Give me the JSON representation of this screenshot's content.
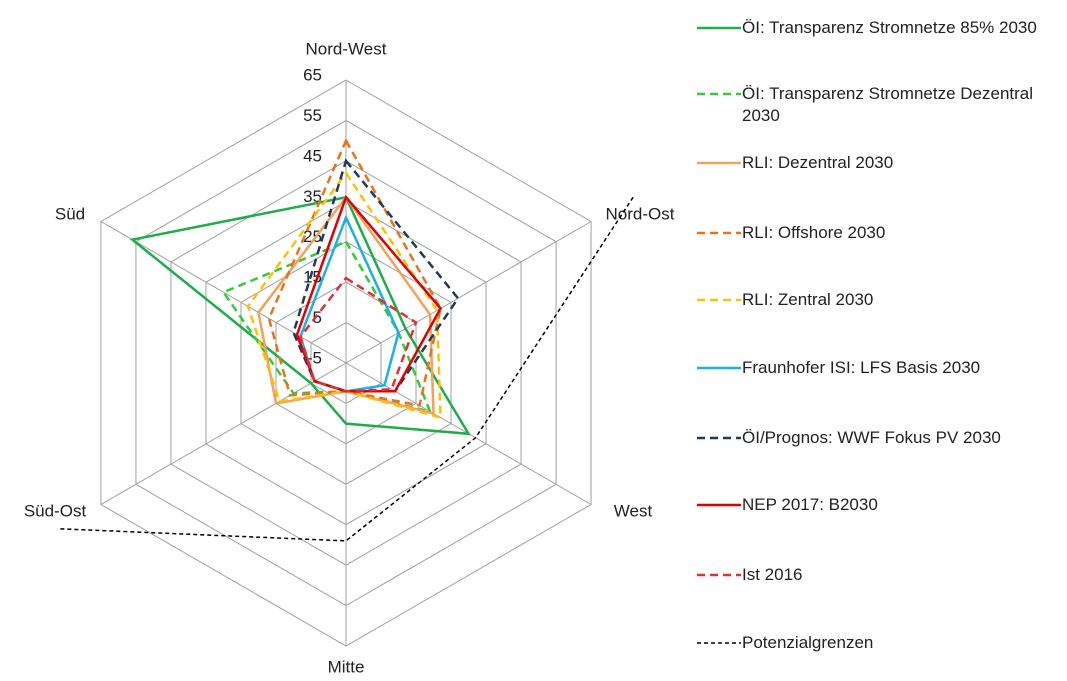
{
  "chart_data": {
    "type": "radar",
    "categories": [
      "Nord-West",
      "Nord-Ost",
      "West",
      "Mitte",
      "Süd-Ost",
      "Süd"
    ],
    "ylim": [
      -5,
      65
    ],
    "yticks": [
      -5,
      5,
      15,
      25,
      35,
      45,
      55,
      65
    ],
    "series": [
      {
        "name": "ÖI: Transparenz Stromnetze 85% 2030",
        "color": "#1aaf48",
        "dash": false,
        "values": [
          36,
          12,
          30,
          10,
          5,
          56
        ]
      },
      {
        "name": "ÖI: Transparenz Stromnetze Dezentral 2030",
        "color": "#33cc33",
        "dash": true,
        "values": [
          25,
          10,
          19,
          2,
          10,
          30
        ]
      },
      {
        "name": "RLI: Dezentral 2030",
        "color": "#f4a15a",
        "dash": false,
        "values": [
          36,
          19,
          20,
          2,
          15,
          20
        ]
      },
      {
        "name": "RLI: Offshore 2030",
        "color": "#e8731a",
        "dash": true,
        "values": [
          50,
          22,
          16,
          2,
          11,
          17
        ]
      },
      {
        "name": "RLI: Zentral 2030",
        "color": "#ffc000",
        "dash": true,
        "values": [
          42,
          21,
          22,
          2,
          14,
          23
        ]
      },
      {
        "name": "Fraunhofer ISI: LFS Basis 2030",
        "color": "#1ab0e8",
        "dash": false,
        "values": [
          31,
          10,
          6,
          2,
          4,
          8
        ]
      },
      {
        "name": "ÖI/Prognos: WWF Fokus PV 2030",
        "color": "#1f3a5a",
        "dash": true,
        "values": [
          45,
          27,
          9,
          2,
          4,
          10
        ]
      },
      {
        "name": "NEP 2017: B2030",
        "color": "#e00000",
        "dash": false,
        "values": [
          36,
          22,
          9,
          2,
          4,
          9
        ]
      },
      {
        "name": "Ist 2016",
        "color": "#e03030",
        "dash": true,
        "values": [
          16,
          15,
          8,
          2,
          4,
          8
        ]
      },
      {
        "name": "Potenzialgrenzen",
        "color": "#000000",
        "dash": true,
        "values": [
          null,
          77,
          32,
          39,
          77,
          null
        ]
      }
    ]
  }
}
